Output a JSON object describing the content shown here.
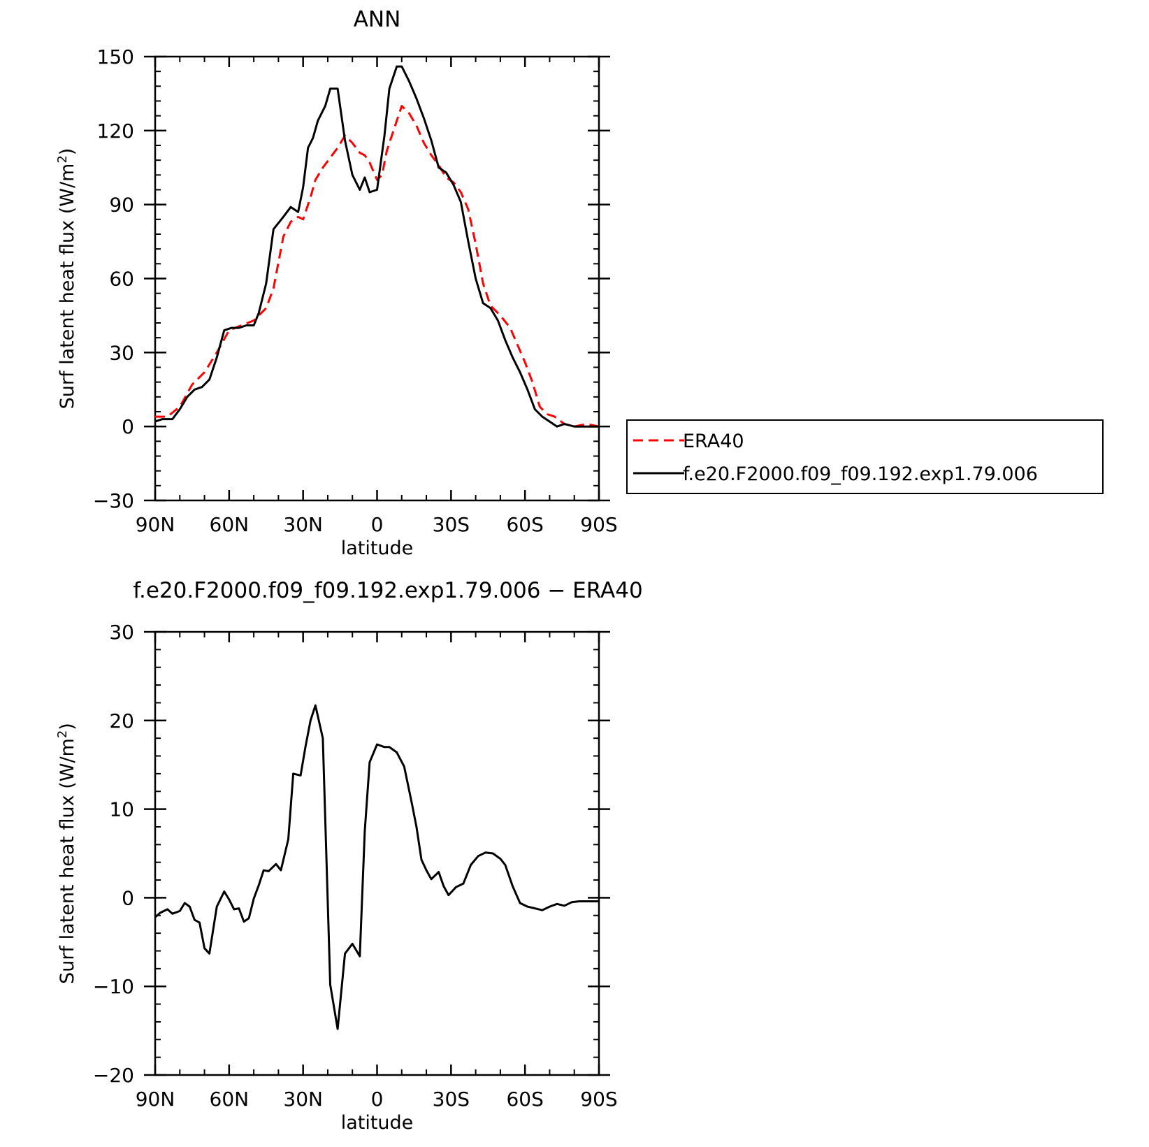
{
  "chart_data": [
    {
      "type": "line",
      "title": "ANN",
      "xlabel": "latitude",
      "ylabel": "Surf latent heat flux (W/m",
      "ylabel_sup": "2",
      "ylabel_close": ")",
      "xlim": [
        90,
        -90
      ],
      "ylim": [
        -30,
        150
      ],
      "x_ticks": [
        90,
        60,
        30,
        0,
        -30,
        -60,
        -90
      ],
      "x_tick_labels": [
        "90N",
        "60N",
        "30N",
        "0",
        "30S",
        "60S",
        "90S"
      ],
      "y_ticks": [
        -30,
        0,
        30,
        60,
        90,
        120,
        150
      ],
      "y_tick_labels": [
        "−30",
        "0",
        "30",
        "60",
        "90",
        "120",
        "150"
      ],
      "legend": "right",
      "series": [
        {
          "name": "ERA40",
          "color": "#ff0000",
          "dash": "dashed",
          "x": [
            90,
            85,
            80,
            75,
            70,
            65,
            60,
            55,
            50,
            45,
            42,
            38,
            35,
            32,
            30,
            27,
            25,
            22,
            19,
            16,
            13,
            10,
            7,
            5,
            3,
            0,
            -2,
            -4,
            -7,
            -10,
            -13,
            -16,
            -19,
            -22,
            -25,
            -28,
            -31,
            -34,
            -37,
            -40,
            -43,
            -46,
            -50,
            -54,
            -57,
            -60,
            -63,
            -66,
            -69,
            -72,
            -76,
            -80,
            -85,
            -90
          ],
          "y": [
            4,
            4,
            8,
            17,
            22,
            30,
            39,
            41,
            43,
            48,
            56,
            77,
            83,
            85,
            84,
            93,
            100,
            105,
            109,
            113,
            118,
            115,
            111,
            110,
            107,
            100,
            102,
            112,
            121,
            130,
            127,
            122,
            115,
            110,
            106,
            101,
            99,
            95,
            88,
            74,
            58,
            49,
            45,
            40,
            33,
            26,
            18,
            8,
            5,
            4,
            1,
            0,
            1,
            0
          ]
        },
        {
          "name": "f.e20.F2000.f09_f09.192.exp1.79.006",
          "color": "#000000",
          "dash": "solid",
          "x": [
            90,
            87,
            83,
            80,
            77,
            74,
            71,
            68,
            65,
            62,
            59,
            56,
            53,
            50,
            48,
            45,
            42,
            38,
            35,
            32,
            30,
            28,
            26,
            24,
            21,
            19,
            16,
            13,
            10,
            7,
            5,
            3,
            0,
            -3,
            -5,
            -8,
            -10,
            -13,
            -16,
            -19,
            -22,
            -25,
            -28,
            -31,
            -34,
            -37,
            -40,
            -43,
            -46,
            -49,
            -52,
            -55,
            -58,
            -61,
            -64,
            -67,
            -70,
            -73,
            -76,
            -80,
            -84,
            -87,
            -90
          ],
          "y": [
            2,
            3,
            3,
            7,
            12,
            15,
            16,
            19,
            28,
            39,
            40,
            40,
            41,
            41,
            46,
            58,
            80,
            85,
            89,
            87,
            97,
            113,
            117,
            124,
            130,
            137,
            137,
            116,
            102,
            96,
            101,
            95,
            96,
            118,
            137,
            146,
            146,
            140,
            133,
            125,
            116,
            105,
            103,
            98,
            91,
            75,
            60,
            50,
            48,
            43,
            35,
            28,
            22,
            15,
            7,
            4,
            2,
            0,
            1,
            0,
            0,
            0,
            0
          ]
        }
      ]
    },
    {
      "type": "line",
      "title": "f.e20.F2000.f09_f09.192.exp1.79.006 − ERA40",
      "xlabel": "latitude",
      "ylabel": "Surf latent heat flux (W/m",
      "ylabel_sup": "2",
      "ylabel_close": ")",
      "xlim": [
        90,
        -90
      ],
      "ylim": [
        -20,
        30
      ],
      "x_ticks": [
        90,
        60,
        30,
        0,
        -30,
        -60,
        -90
      ],
      "x_tick_labels": [
        "90N",
        "60N",
        "30N",
        "0",
        "30S",
        "60S",
        "90S"
      ],
      "y_ticks": [
        -20,
        -10,
        0,
        10,
        20,
        30
      ],
      "y_tick_labels": [
        "−20",
        "−10",
        "0",
        "10",
        "20",
        "30"
      ],
      "series": [
        {
          "color": "#000000",
          "dash": "solid",
          "x": [
            90,
            88,
            85,
            83,
            80,
            78,
            76,
            74,
            72,
            70,
            68,
            65,
            62,
            60,
            58,
            56,
            54,
            52,
            50,
            48,
            46,
            44,
            41,
            39,
            36,
            34,
            31,
            29,
            27,
            25,
            22,
            19,
            16,
            13,
            10,
            7,
            5,
            3,
            0,
            -3,
            -5,
            -8,
            -11,
            -14,
            -16,
            -18,
            -20,
            -22,
            -25,
            -27,
            -29,
            -32,
            -35,
            -38,
            -41,
            -44,
            -47,
            -50,
            -52,
            -55,
            -58,
            -61,
            -64,
            -67,
            -70,
            -73,
            -76,
            -79,
            -82,
            -85,
            -88,
            -90
          ],
          "y": [
            -2.2,
            -1.7,
            -1.3,
            -1.8,
            -1.5,
            -0.6,
            -1.0,
            -2.5,
            -2.8,
            -5.7,
            -6.3,
            -1.0,
            0.7,
            -0.2,
            -1.3,
            -1.2,
            -2.7,
            -2.3,
            -0.1,
            1.4,
            3.1,
            3.0,
            3.8,
            3.1,
            6.6,
            14.0,
            13.8,
            17.1,
            20.0,
            21.7,
            18.0,
            -9.8,
            -14.8,
            -6.3,
            -5.2,
            -6.6,
            7.5,
            15.3,
            17.3,
            17.0,
            17.0,
            16.4,
            14.8,
            10.8,
            8.0,
            4.3,
            3.1,
            2.1,
            2.9,
            1.3,
            0.3,
            1.2,
            1.6,
            3.7,
            4.7,
            5.1,
            5.0,
            4.4,
            3.7,
            1.3,
            -0.6,
            -1.0,
            -1.2,
            -1.4,
            -1.0,
            -0.7,
            -0.9,
            -0.5,
            -0.4,
            -0.4,
            -0.4,
            -0.4
          ]
        }
      ]
    }
  ]
}
